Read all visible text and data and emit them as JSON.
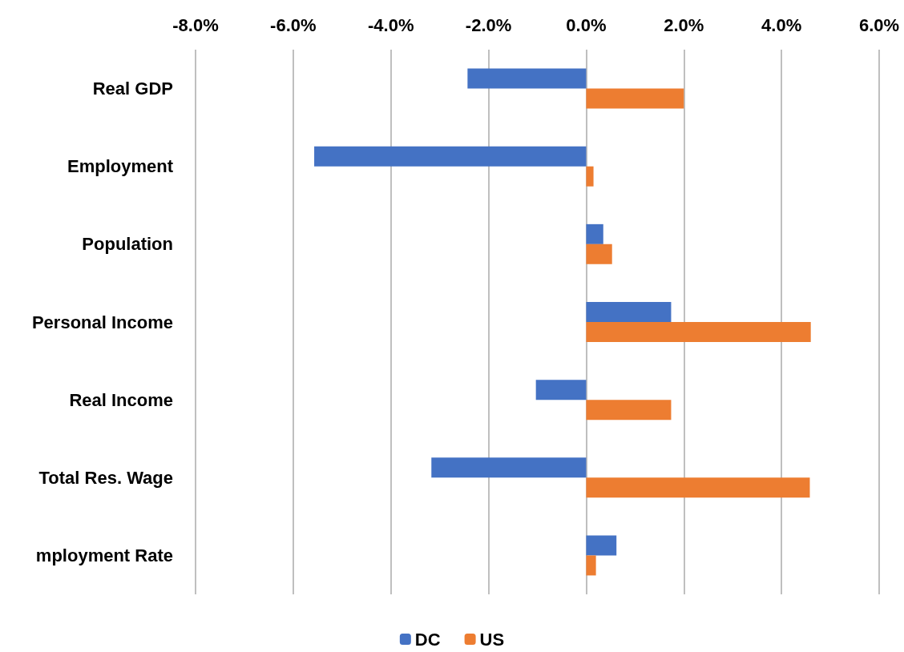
{
  "chart_data": {
    "type": "bar",
    "orientation": "horizontal",
    "categories": [
      "Real GDP",
      "Employment",
      "Population",
      "Personal Income",
      "Real Income",
      "Total Res. Wage",
      "mployment Rate"
    ],
    "series": [
      {
        "name": "DC",
        "color": "#4472c4",
        "values": [
          -2.43,
          -5.57,
          0.35,
          1.74,
          -1.03,
          -3.17,
          0.62
        ]
      },
      {
        "name": "US",
        "color": "#ed7d31",
        "values": [
          2.0,
          0.15,
          0.53,
          4.6,
          1.74,
          4.58,
          0.2
        ]
      }
    ],
    "xlim": [
      -8,
      6
    ],
    "xticks": [
      {
        "value": -8,
        "label": "-8.0%"
      },
      {
        "value": -6,
        "label": "-6.0%"
      },
      {
        "value": -4,
        "label": "-4.0%"
      },
      {
        "value": -2,
        "label": "-2.0%"
      },
      {
        "value": 0,
        "label": "0.0%"
      },
      {
        "value": 2,
        "label": "2.0%"
      },
      {
        "value": 4,
        "label": "4.0%"
      },
      {
        "value": 6,
        "label": "6.0%"
      }
    ],
    "grid": "x",
    "legend": "bottom"
  }
}
